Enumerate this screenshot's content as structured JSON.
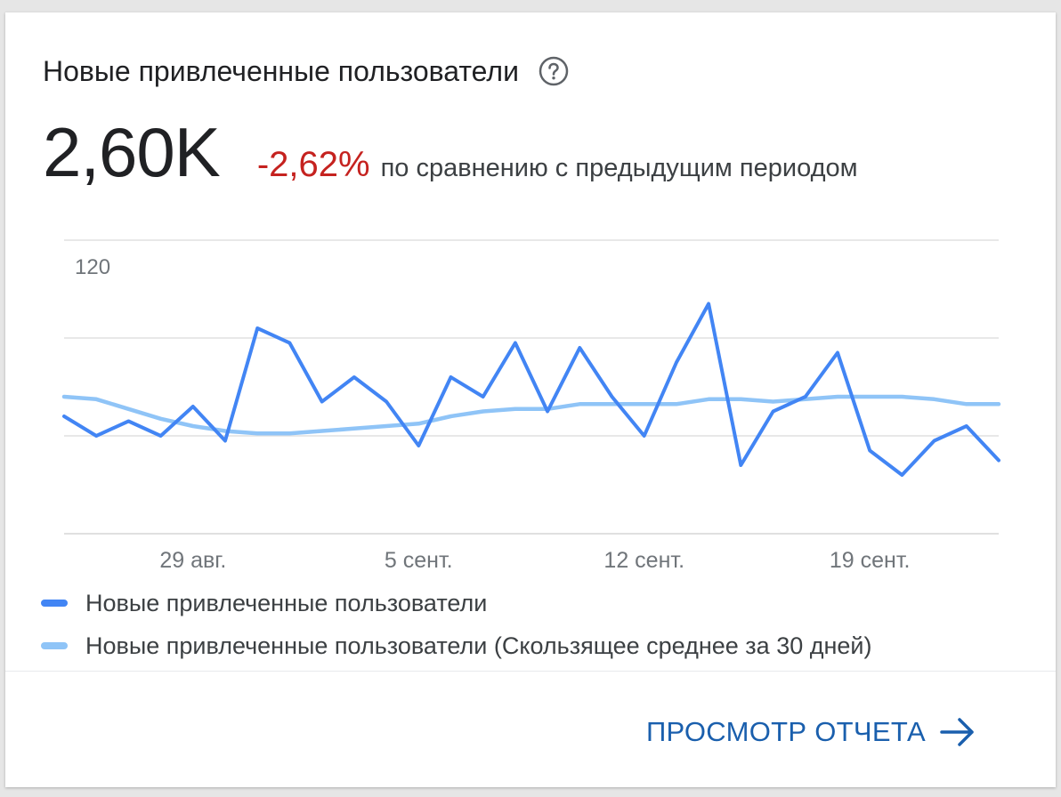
{
  "card": {
    "title": "Новые привлеченные пользователи",
    "help_icon": "help-circle-icon",
    "metric_value": "2,60K",
    "delta": "-2,62%",
    "compare_text": "по сравнению с предыдущим периодом",
    "report_link": "ПРОСМОТР ОТЧЕТА",
    "report_icon": "arrow-right-icon"
  },
  "colors": {
    "primary_series": "#4285f4",
    "average_series": "#8fc4f7",
    "delta_negative": "#c5221f",
    "link": "#1a5fad",
    "grid": "#e0e0e0"
  },
  "chart_data": {
    "type": "line",
    "ylim": [
      0,
      120
    ],
    "y_tick_label": "120",
    "x_tick_labels": [
      {
        "label": "29 авг.",
        "index": 4
      },
      {
        "label": "5 сент.",
        "index": 11
      },
      {
        "label": "12 сент.",
        "index": 18
      },
      {
        "label": "19 сент.",
        "index": 25
      }
    ],
    "grid": true,
    "legend_position": "bottom",
    "series": [
      {
        "name": "Новые привлеченные пользователи",
        "values": [
          48,
          40,
          46,
          40,
          52,
          38,
          84,
          78,
          54,
          64,
          54,
          36,
          64,
          56,
          78,
          50,
          76,
          56,
          40,
          70,
          94,
          28,
          50,
          56,
          74,
          34,
          24,
          38,
          44,
          30
        ]
      },
      {
        "name": "Новые привлеченные пользователи (Скользящее среднее за 30 дней)",
        "values": [
          56,
          55,
          51,
          47,
          44,
          42,
          41,
          41,
          42,
          43,
          44,
          45,
          48,
          50,
          51,
          51,
          53,
          53,
          53,
          53,
          55,
          55,
          54,
          55,
          56,
          56,
          56,
          55,
          53,
          53
        ]
      }
    ]
  }
}
